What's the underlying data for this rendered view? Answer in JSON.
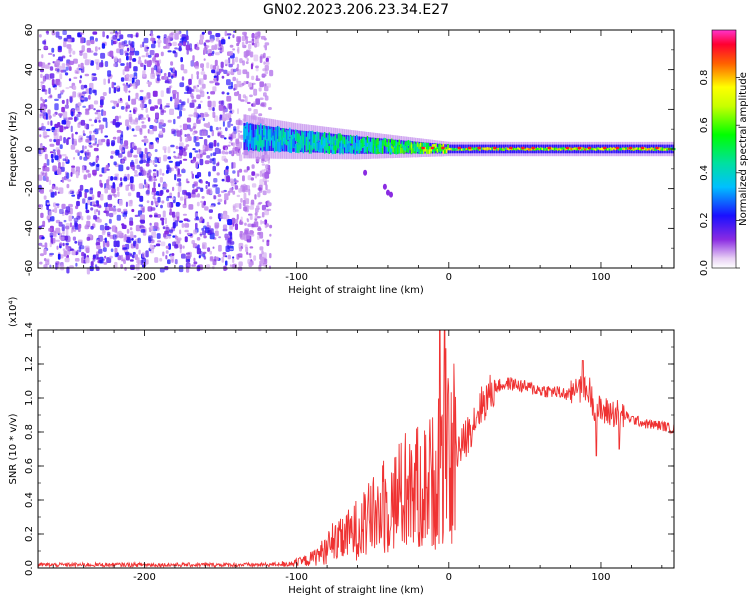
{
  "title": "GN02.2023.206.23.34.E27",
  "chart_data": [
    {
      "type": "heatmap",
      "xlabel": "Height of straight line (km)",
      "ylabel": "Frequency (Hz)",
      "xlim": [
        -270,
        148
      ],
      "ylim": [
        -60,
        60
      ],
      "xticks": [
        -200,
        -100,
        0,
        100
      ],
      "yticks": [
        -60,
        -40,
        -20,
        0,
        20,
        40,
        60
      ],
      "colorbar": {
        "label": "Normalized spectral amplitude",
        "range": [
          0.0,
          1.0
        ],
        "ticks": [
          "0.0",
          "0.2",
          "0.4",
          "0.6",
          "0.8"
        ]
      },
      "description": "Broadband noise at all frequencies for heights below about -120 km; narrow band centered near 0 Hz above -130 km, with highest amplitude (about 0.9) between 0 and 110 km",
      "band": {
        "x": [
          -130,
          -100,
          -60,
          -30,
          0,
          50,
          100,
          148
        ],
        "center_hz": [
          6,
          4,
          2,
          1,
          0,
          0,
          0,
          0
        ],
        "halfwidth_hz": [
          6,
          5,
          4,
          3,
          2,
          2,
          2,
          2
        ],
        "peak_amplitude": [
          0.45,
          0.5,
          0.55,
          0.65,
          0.8,
          0.85,
          0.9,
          0.8
        ]
      }
    },
    {
      "type": "line",
      "xlabel": "Height of straight line (km)",
      "ylabel": "SNR (10 * v/v)",
      "y_multiplier": "(x10⁴)",
      "xlim": [
        -270,
        148
      ],
      "ylim": [
        0.0,
        1.4
      ],
      "xticks": [
        -200,
        -100,
        0,
        100
      ],
      "yticks": [
        "0.0",
        "0.2",
        "0.4",
        "0.6",
        "0.8",
        "1.0",
        "1.2",
        "1.4"
      ],
      "color": "#ef3232",
      "series": [
        {
          "x": [
            -270,
            -200,
            -120,
            -100,
            -90,
            -80,
            -70,
            -60,
            -50,
            -40,
            -30,
            -20,
            -10,
            -6,
            0,
            10,
            20,
            30,
            40,
            50,
            60,
            70,
            80,
            88,
            95,
            100,
            110,
            120,
            130,
            140,
            148
          ],
          "y": [
            0.02,
            0.02,
            0.02,
            0.03,
            0.06,
            0.12,
            0.18,
            0.25,
            0.32,
            0.4,
            0.46,
            0.5,
            0.55,
            1.4,
            0.62,
            0.75,
            0.95,
            1.07,
            1.09,
            1.07,
            1.05,
            1.04,
            1.02,
            1.2,
            0.97,
            0.93,
            0.92,
            0.88,
            0.85,
            0.84,
            0.82
          ]
        }
      ]
    }
  ]
}
